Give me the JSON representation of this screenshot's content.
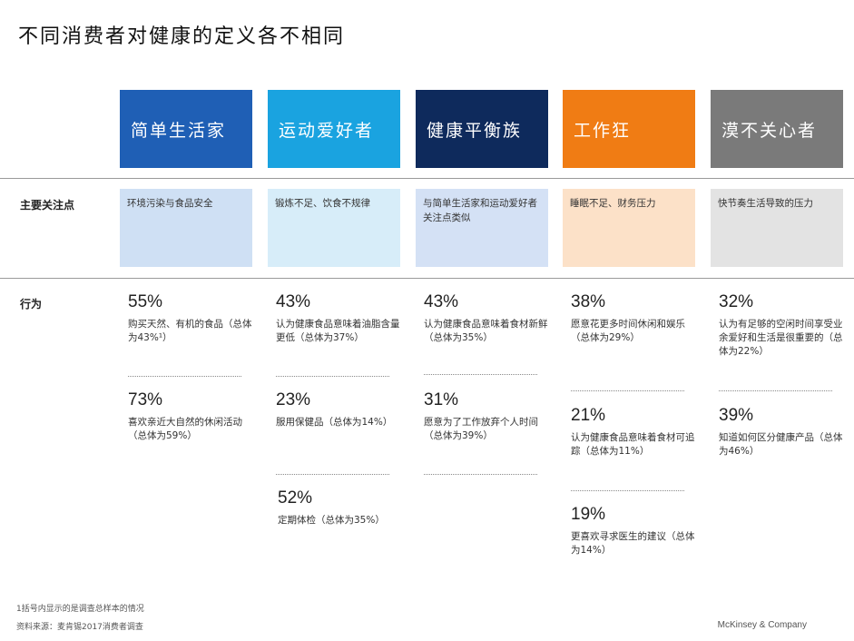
{
  "title": "不同消费者对健康的定义各不相同",
  "row_labels": {
    "focus": "主要关注点",
    "behavior": "行为"
  },
  "segments": [
    {
      "name": "简单生活家",
      "header_color": "#1f5fb5",
      "focus_color": "#cfe0f4",
      "focus": "环境污染与食品安全",
      "stats": [
        {
          "pct": "55%",
          "desc": "购买天然、有机的食品（总体为43%¹）"
        },
        {
          "pct": "73%",
          "desc": "喜欢亲近大自然的休闲活动（总体为59%）"
        }
      ]
    },
    {
      "name": "运动爱好者",
      "header_color": "#1aa3e0",
      "focus_color": "#d7edf9",
      "focus": "锻炼不足、饮食不规律",
      "stats": [
        {
          "pct": "43%",
          "desc": "认为健康食品意味着油脂含量更低（总体为37%）"
        },
        {
          "pct": "23%",
          "desc": "服用保健品（总体为14%）"
        },
        {
          "pct": "52%",
          "desc": "定期体检（总体为35%）"
        }
      ]
    },
    {
      "name": "健康平衡族",
      "header_color": "#0e2a5c",
      "focus_color": "#d4e1f5",
      "focus": "与简单生活家和运动爱好者关注点类似",
      "stats": [
        {
          "pct": "43%",
          "desc": "认为健康食品意味着食材新鲜（总体为35%）"
        },
        {
          "pct": "31%",
          "desc": "愿意为了工作放弃个人时间（总体为39%）"
        }
      ]
    },
    {
      "name": "工作狂",
      "header_color": "#f07c14",
      "focus_color": "#fce1c8",
      "focus": "睡眠不足、财务压力",
      "stats": [
        {
          "pct": "38%",
          "desc": "愿意花更多时间休闲和娱乐（总体为29%）"
        },
        {
          "pct": "21%",
          "desc": "认为健康食品意味着食材可追踪（总体为11%）"
        },
        {
          "pct": "19%",
          "desc": "更喜欢寻求医生的建议（总体为14%）"
        }
      ]
    },
    {
      "name": "漠不关心者",
      "header_color": "#7a7a7a",
      "focus_color": "#e3e3e3",
      "focus": "快节奏生活导致的压力",
      "stats": [
        {
          "pct": "32%",
          "desc": "认为有足够的空闲时间享受业余爱好和生活是很重要的（总体为22%）"
        },
        {
          "pct": "39%",
          "desc": "知道如何区分健康产品（总体为46%）"
        }
      ]
    }
  ],
  "footnote": "1括号内显示的是调查总样本的情况",
  "source": "资料来源：麦肯锡2017消费者调查",
  "brand": "McKinsey & Company"
}
